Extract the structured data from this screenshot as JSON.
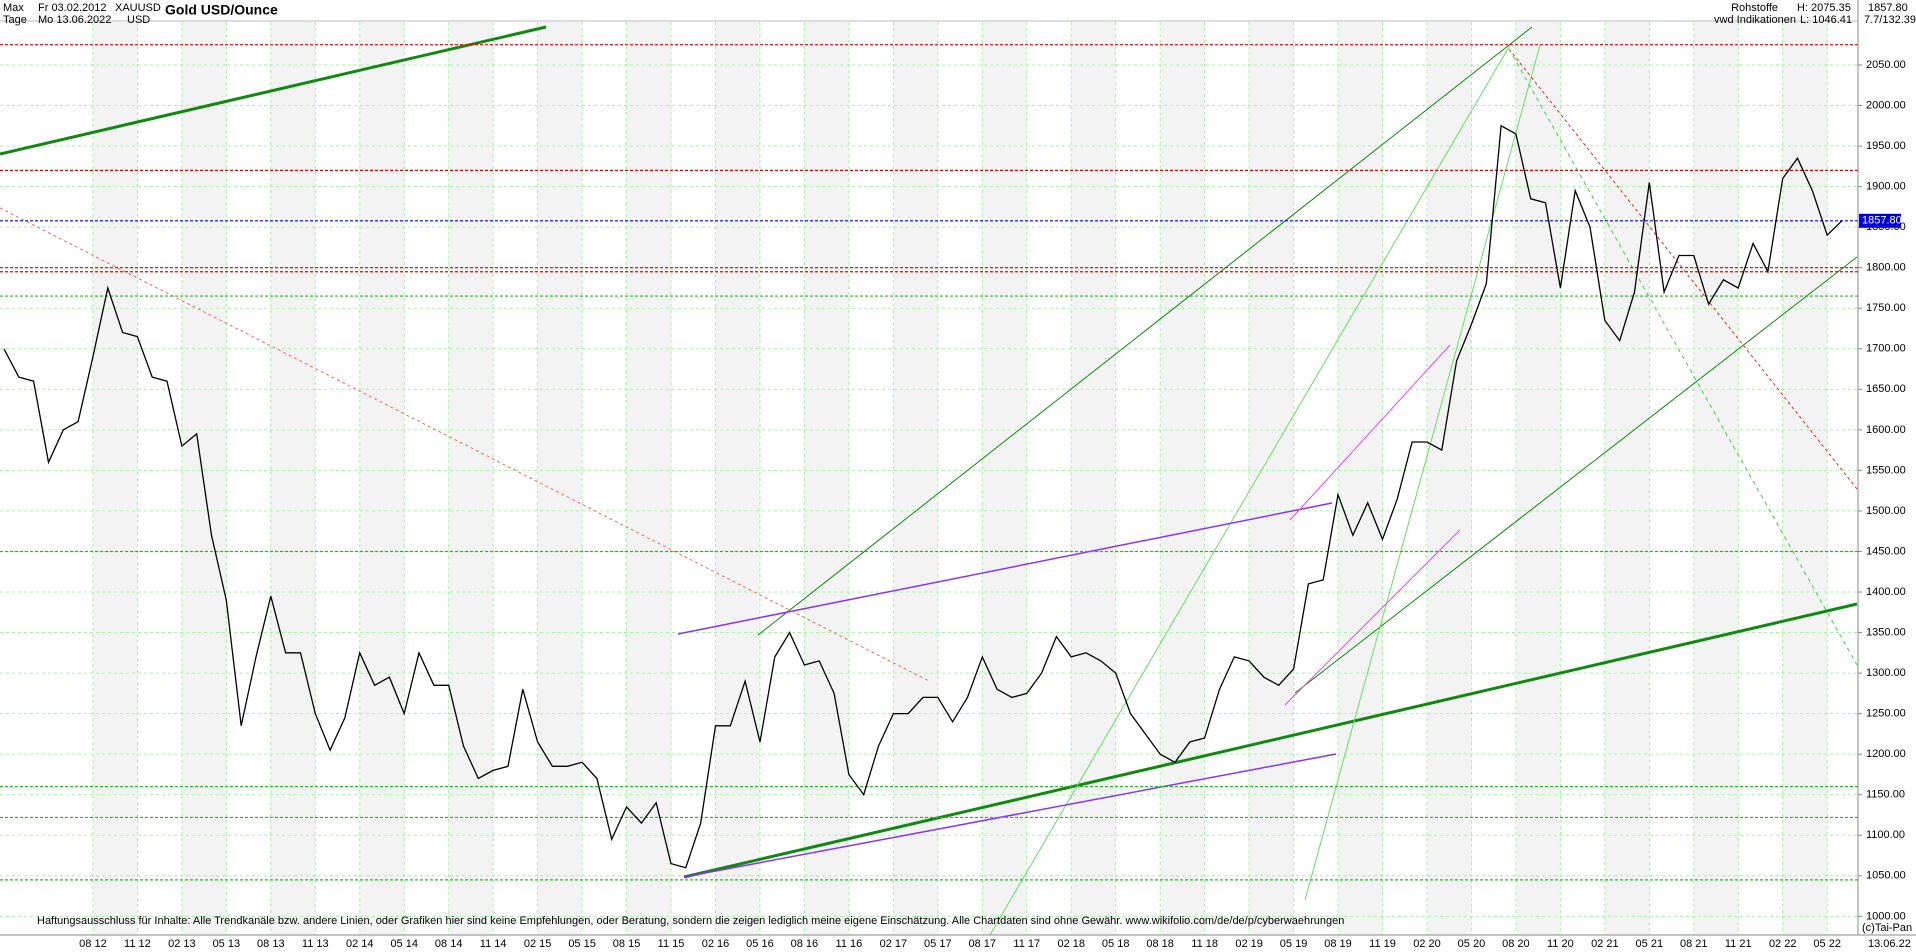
{
  "header": {
    "range": "Max",
    "start": "Fr 03.02.2012",
    "interval": "Tage",
    "end": "Mo 13.06.2022",
    "symbol": "XAUUSD",
    "currency": "USD",
    "title": "Gold USD/Ounce",
    "group": "Rohstoffe",
    "high": "H: 2075.35",
    "source": "vwd Indikationen",
    "low": "L: 1046.41",
    "last": "1857.80",
    "ratio": "7.7/132.39"
  },
  "chart_data": {
    "type": "line",
    "color": "#000000",
    "categories": [
      null,
      null,
      null,
      null,
      null,
      null,
      "08 12",
      null,
      null,
      "11 12",
      null,
      null,
      "02 13",
      null,
      null,
      "05 13",
      null,
      null,
      "08 13",
      null,
      null,
      "11 13",
      null,
      null,
      "02 14",
      null,
      null,
      "05 14",
      null,
      null,
      "08 14",
      null,
      null,
      "11 14",
      null,
      null,
      "02 15",
      null,
      null,
      "05 15",
      null,
      null,
      "08 15",
      null,
      null,
      "11 15",
      null,
      null,
      "02 16",
      null,
      null,
      "05 16",
      null,
      null,
      "08 16",
      null,
      null,
      "11 16",
      null,
      null,
      "02 17",
      null,
      null,
      "05 17",
      null,
      null,
      "08 17",
      null,
      null,
      "11 17",
      null,
      null,
      "02 18",
      null,
      null,
      "05 18",
      null,
      null,
      "08 18",
      null,
      null,
      "11 18",
      null,
      null,
      "02 19",
      null,
      null,
      "05 19",
      null,
      null,
      "08 19",
      null,
      null,
      "11 19",
      null,
      null,
      "02 20",
      null,
      null,
      "05 20",
      null,
      null,
      "08 20",
      null,
      null,
      "11 20",
      null,
      null,
      "02 21",
      null,
      null,
      "05 21",
      null,
      null,
      "08 21",
      null,
      null,
      "11 21",
      null,
      null,
      "02 22",
      null,
      null,
      "05 22",
      null
    ],
    "values": [
      1700,
      1665,
      1660,
      1560,
      1600,
      1610,
      1690,
      1775,
      1720,
      1715,
      1665,
      1660,
      1580,
      1595,
      1470,
      1390,
      1235,
      1320,
      1395,
      1325,
      1325,
      1250,
      1205,
      1245,
      1325,
      1285,
      1295,
      1250,
      1325,
      1285,
      1285,
      1210,
      1170,
      1180,
      1185,
      1280,
      1215,
      1185,
      1185,
      1190,
      1170,
      1095,
      1135,
      1115,
      1140,
      1065,
      1060,
      1115,
      1235,
      1235,
      1290,
      1215,
      1320,
      1350,
      1310,
      1315,
      1275,
      1175,
      1150,
      1210,
      1250,
      1250,
      1270,
      1270,
      1240,
      1270,
      1320,
      1280,
      1270,
      1275,
      1300,
      1345,
      1320,
      1325,
      1315,
      1300,
      1250,
      1225,
      1200,
      1190,
      1215,
      1220,
      1280,
      1320,
      1315,
      1295,
      1285,
      1305,
      1410,
      1415,
      1520,
      1470,
      1510,
      1465,
      1515,
      1585,
      1585,
      1575,
      1685,
      1730,
      1780,
      1975,
      1965,
      1885,
      1880,
      1775,
      1895,
      1850,
      1735,
      1710,
      1770,
      1905,
      1770,
      1815,
      1815,
      1755,
      1785,
      1775,
      1830,
      1795,
      1910,
      1935,
      1895,
      1840,
      1858
    ],
    "ylim": [
      977,
      2103
    ],
    "yticks": [
      {
        "value": 1000,
        "label": "1000.00"
      },
      {
        "value": 1050,
        "label": "1050.00"
      },
      {
        "value": 1100,
        "label": "1100.00"
      },
      {
        "value": 1150,
        "label": "1150.00"
      },
      {
        "value": 1200,
        "label": "1200.00"
      },
      {
        "value": 1250,
        "label": "1250.00"
      },
      {
        "value": 1300,
        "label": "1300.00"
      },
      {
        "value": 1350,
        "label": "1350.00"
      },
      {
        "value": 1400,
        "label": "1400.00"
      },
      {
        "value": 1450,
        "label": "1450.00"
      },
      {
        "value": 1500,
        "label": "1500.00"
      },
      {
        "value": 1550,
        "label": "1550.00"
      },
      {
        "value": 1600,
        "label": "1600.00"
      },
      {
        "value": 1650,
        "label": "1650.00"
      },
      {
        "value": 1700,
        "label": "1700.00"
      },
      {
        "value": 1750,
        "label": "1750.00"
      },
      {
        "value": 1800,
        "label": "1800.00"
      },
      {
        "value": 1850,
        "label": "1850.00"
      },
      {
        "value": 1900,
        "label": "1900.00"
      },
      {
        "value": 1950,
        "label": "1950.00"
      },
      {
        "value": 2000,
        "label": "2000.00"
      },
      {
        "value": 2050,
        "label": "2050.00"
      }
    ],
    "grid": true,
    "reference_lines": [
      {
        "value": 1857.8,
        "label": "1857.80",
        "color": "#0000dd"
      },
      {
        "value": 2075,
        "color": "#e00000"
      },
      {
        "value": 1920,
        "color": "#e00000"
      },
      {
        "value": 1800,
        "color": "#e00000"
      },
      {
        "value": 1795,
        "color": "#e00000"
      },
      {
        "value": 1765,
        "color": "#22bb22"
      },
      {
        "value": 1450,
        "color": "#22bb22"
      },
      {
        "value": 1160,
        "color": "#22bb22"
      },
      {
        "value": 1122,
        "color": "#22bb22"
      },
      {
        "value": 1045,
        "color": "#22bb22"
      }
    ],
    "end_label": "13.06.22",
    "credit": "(c)Tai-Pan",
    "disclaimer": "Haftungsausschluss für Inhalte: Alle Trendkanäle bzw. andere Linien, oder Grafiken hier sind keine Empfehlungen, oder Beratung, sondern die zeigen lediglich meine eigene Einschätzung. Alle Chartdaten sind ohne Gewähr.  www.wikifolio.com/de/de/p/cyberwaehrungen"
  }
}
